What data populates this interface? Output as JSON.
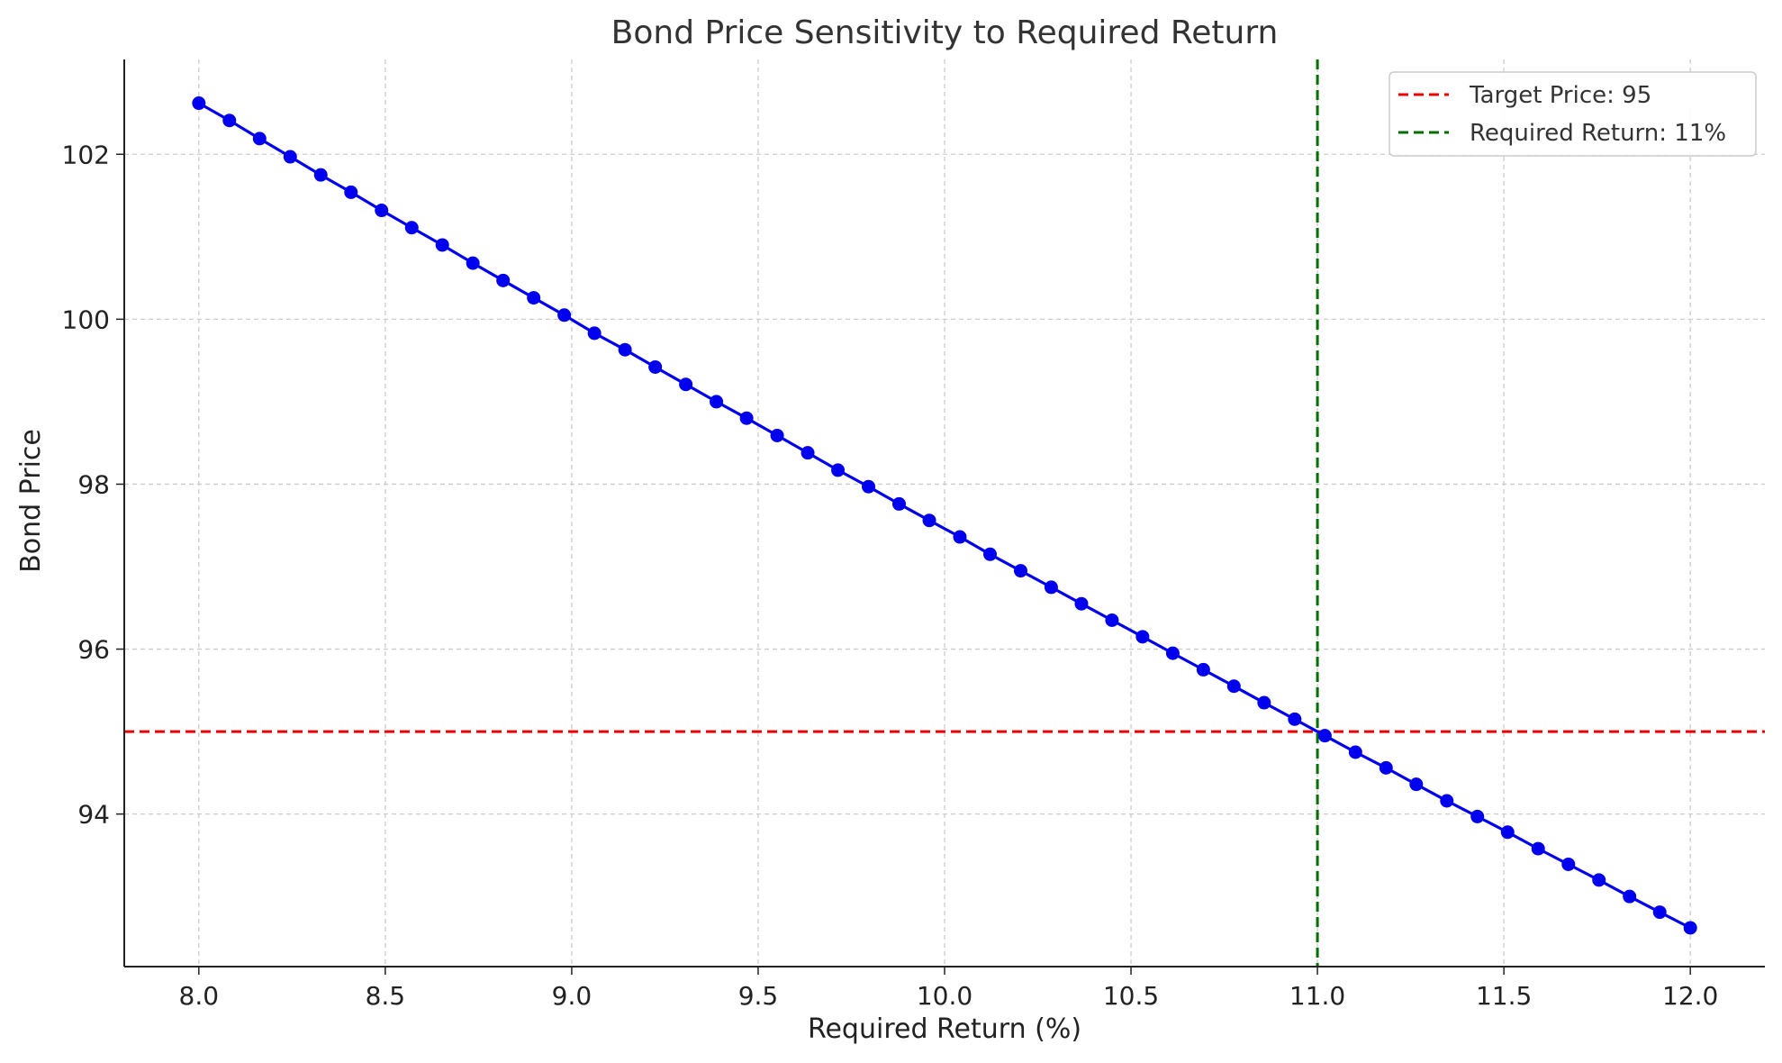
{
  "chart_data": {
    "type": "line",
    "title": "Bond Price Sensitivity to Required Return",
    "xlabel": "Required Return (%)",
    "ylabel": "Bond Price",
    "xlim": [
      7.8,
      12.2
    ],
    "ylim": [
      92.15,
      103.15
    ],
    "xticks": [
      "8.0",
      "8.5",
      "9.0",
      "9.5",
      "10.0",
      "10.5",
      "11.0",
      "11.5",
      "12.0"
    ],
    "yticks": [
      "94",
      "96",
      "98",
      "100",
      "102"
    ],
    "grid": true,
    "legend_position": "top-right",
    "series": [
      {
        "color": "#0000ee",
        "marker": "circle",
        "x": [
          8.0,
          8.082,
          8.163,
          8.245,
          8.327,
          8.408,
          8.49,
          8.571,
          8.653,
          8.735,
          8.816,
          8.898,
          8.98,
          9.061,
          9.143,
          9.224,
          9.306,
          9.388,
          9.469,
          9.551,
          9.633,
          9.714,
          9.796,
          9.878,
          9.959,
          10.041,
          10.122,
          10.204,
          10.286,
          10.367,
          10.449,
          10.531,
          10.612,
          10.694,
          10.776,
          10.857,
          10.939,
          11.02,
          11.102,
          11.184,
          11.265,
          11.347,
          11.429,
          11.51,
          11.592,
          11.673,
          11.755,
          11.837,
          11.918,
          12.0
        ],
        "values": [
          102.62,
          102.41,
          102.19,
          101.97,
          101.75,
          101.54,
          101.32,
          101.11,
          100.9,
          100.68,
          100.47,
          100.26,
          100.05,
          99.83,
          99.63,
          99.42,
          99.21,
          99.0,
          98.8,
          98.59,
          98.38,
          98.17,
          97.97,
          97.76,
          97.56,
          97.36,
          97.15,
          96.95,
          96.75,
          96.55,
          96.35,
          96.15,
          95.95,
          95.75,
          95.55,
          95.35,
          95.15,
          94.95,
          94.75,
          94.56,
          94.36,
          94.16,
          93.97,
          93.78,
          93.58,
          93.39,
          93.2,
          93.0,
          92.81,
          92.62
        ]
      }
    ],
    "reference_lines": [
      {
        "orientation": "horizontal",
        "value": 95,
        "color": "#ee0000",
        "style": "dashed",
        "label": "Target Price: 95"
      },
      {
        "orientation": "vertical",
        "value": 11,
        "color": "#007000",
        "style": "dashed",
        "label": "Required Return: 11%"
      }
    ]
  }
}
